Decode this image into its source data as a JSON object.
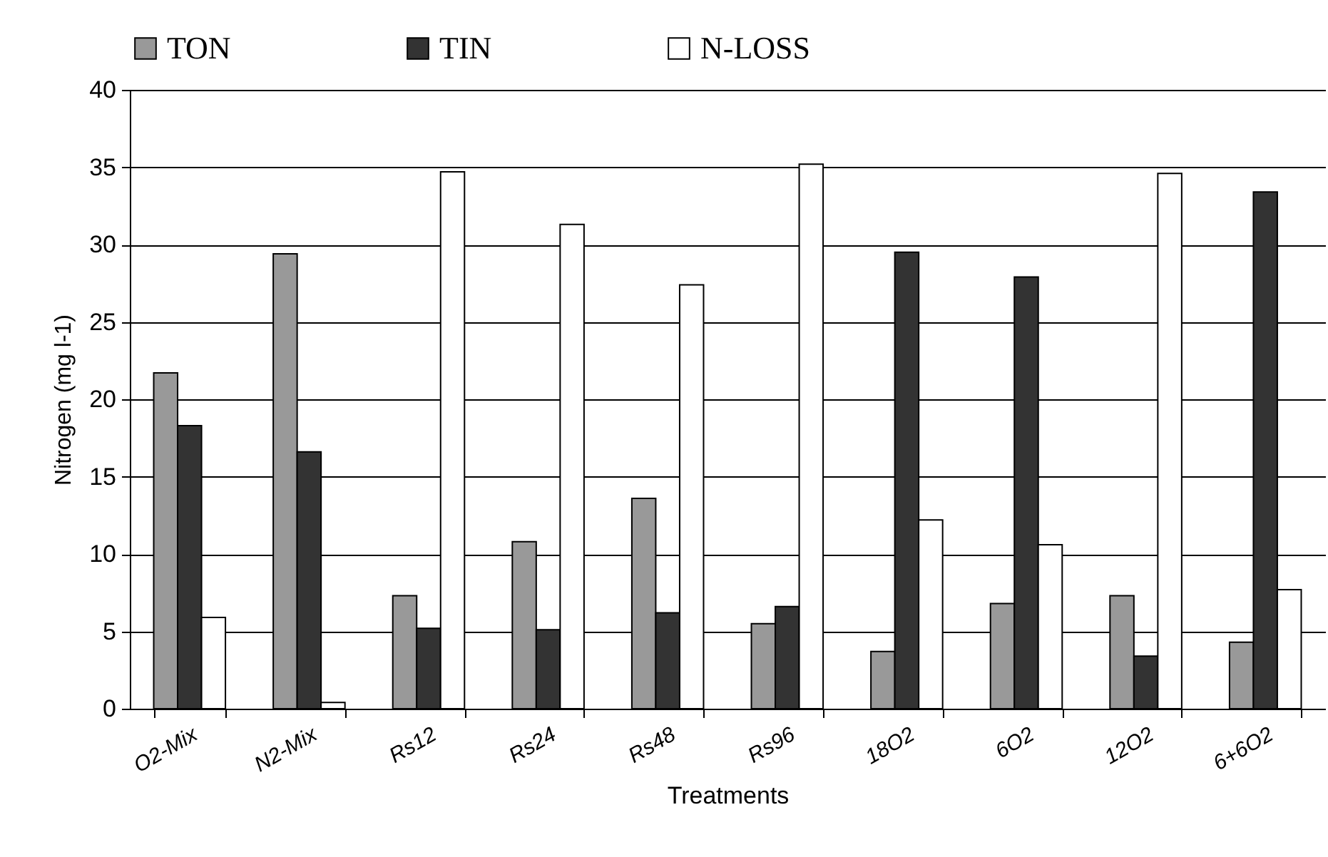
{
  "chart_data": {
    "type": "bar",
    "xlabel": "Treatments",
    "ylabel": "Nitrogen (mg l-1)",
    "categories": [
      "O2-Mix",
      "N2-Mix",
      "Rs12",
      "Rs24",
      "Rs48",
      "Rs96",
      "18O2",
      "6O2",
      "12O2",
      "6+6O2"
    ],
    "series": [
      {
        "name": "TON",
        "color": "#999999",
        "values": [
          21.7,
          29.4,
          7.3,
          10.8,
          13.6,
          5.5,
          3.7,
          6.8,
          7.3,
          4.3
        ]
      },
      {
        "name": "TIN",
        "color": "#333333",
        "values": [
          18.3,
          16.6,
          5.2,
          5.1,
          6.2,
          6.6,
          29.5,
          27.9,
          3.4,
          33.4
        ]
      },
      {
        "name": "N-LOSS",
        "color": "#ffffff",
        "values": [
          5.9,
          0.4,
          34.7,
          31.3,
          27.4,
          35.2,
          12.2,
          10.6,
          34.6,
          7.7
        ]
      }
    ],
    "ylim": [
      0,
      40
    ],
    "yticks": [
      0,
      5,
      10,
      15,
      20,
      25,
      30,
      35,
      40
    ],
    "grid": "y",
    "legend": "top"
  }
}
